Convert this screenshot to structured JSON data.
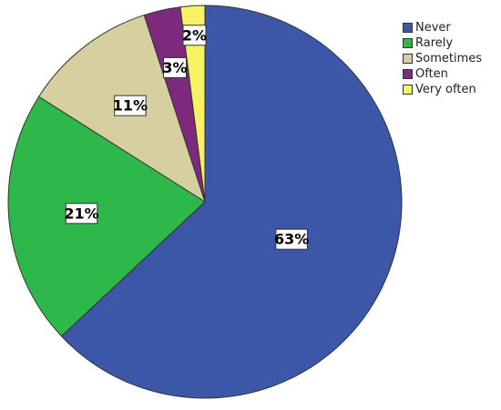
{
  "chart_data": {
    "type": "pie",
    "categories": [
      "Never",
      "Rarely",
      "Sometimes",
      "Often",
      "Very often"
    ],
    "values": [
      63,
      21,
      11,
      3,
      2
    ],
    "labels": [
      "63%",
      "21%",
      "11%",
      "3%",
      "2%"
    ],
    "colors": [
      "#3c56a8",
      "#2fb84a",
      "#d6cfa0",
      "#7e2a7c",
      "#f7f263"
    ],
    "legend_position": "top-right",
    "start": "top",
    "direction": "clockwise"
  }
}
